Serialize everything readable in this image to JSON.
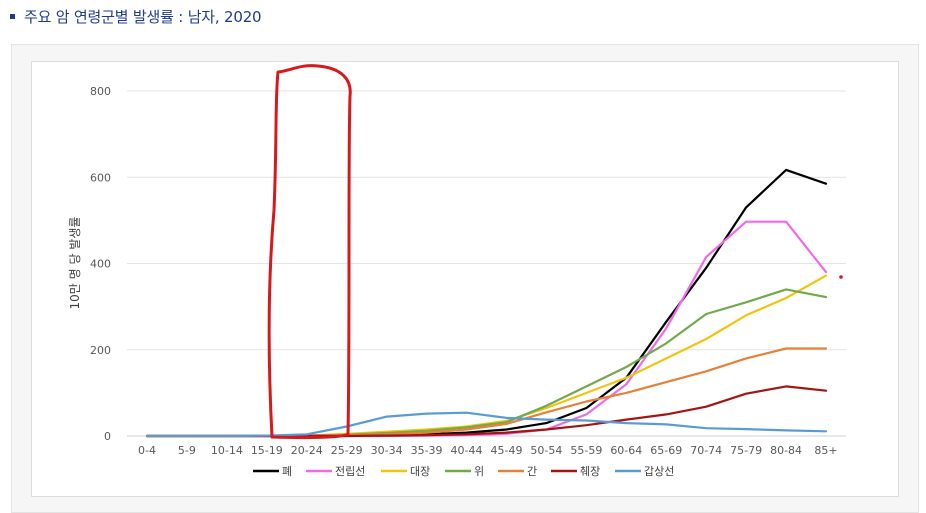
{
  "header": {
    "title": "주요 암 연령군별 발생률 : 남자, 2020"
  },
  "colors": {
    "title": "#1f3b8f",
    "annotation": "#d7191c"
  },
  "chart_data": {
    "type": "line",
    "title": "",
    "xlabel": "",
    "ylabel": "10만 명 당 발생률",
    "ylim": [
      0,
      800
    ],
    "yticks": [
      0,
      200,
      400,
      600,
      800
    ],
    "grid": true,
    "legend_position": "bottom",
    "categories": [
      "0-4",
      "5-9",
      "10-14",
      "15-19",
      "20-24",
      "25-29",
      "30-34",
      "35-39",
      "40-44",
      "45-49",
      "50-54",
      "55-59",
      "60-64",
      "65-69",
      "70-74",
      "75-79",
      "80-84",
      "85+"
    ],
    "series": [
      {
        "name": "폐",
        "color": "#000000",
        "values": [
          0,
          0,
          0,
          0,
          0,
          1,
          2,
          4,
          8,
          15,
          30,
          65,
          135,
          265,
          390,
          530,
          617,
          585
        ]
      },
      {
        "name": "전립선",
        "color": "#f06ae8",
        "values": [
          0,
          0,
          0,
          0,
          0,
          0,
          0,
          1,
          2,
          5,
          15,
          50,
          120,
          250,
          415,
          497,
          497,
          380
        ]
      },
      {
        "name": "대장",
        "color": "#f2c311",
        "values": [
          0,
          0,
          0,
          0,
          1,
          5,
          10,
          15,
          22,
          35,
          65,
          100,
          135,
          180,
          225,
          280,
          320,
          372
        ]
      },
      {
        "name": "위",
        "color": "#72a94b",
        "values": [
          0,
          0,
          0,
          0,
          1,
          3,
          7,
          12,
          20,
          32,
          70,
          115,
          160,
          215,
          283,
          310,
          340,
          322
        ]
      },
      {
        "name": "간",
        "color": "#e6813b",
        "values": [
          0,
          0,
          0,
          0,
          1,
          2,
          4,
          8,
          15,
          28,
          55,
          80,
          100,
          125,
          150,
          180,
          203,
          203
        ]
      },
      {
        "name": "췌장",
        "color": "#a31515",
        "values": [
          0,
          0,
          0,
          0,
          0,
          0,
          1,
          2,
          4,
          8,
          15,
          25,
          38,
          50,
          68,
          98,
          115,
          105
        ]
      },
      {
        "name": "갑상선",
        "color": "#5b9bd5",
        "values": [
          0,
          0,
          0,
          1,
          4,
          22,
          45,
          52,
          54,
          42,
          38,
          36,
          30,
          27,
          18,
          16,
          13,
          11
        ]
      }
    ]
  }
}
